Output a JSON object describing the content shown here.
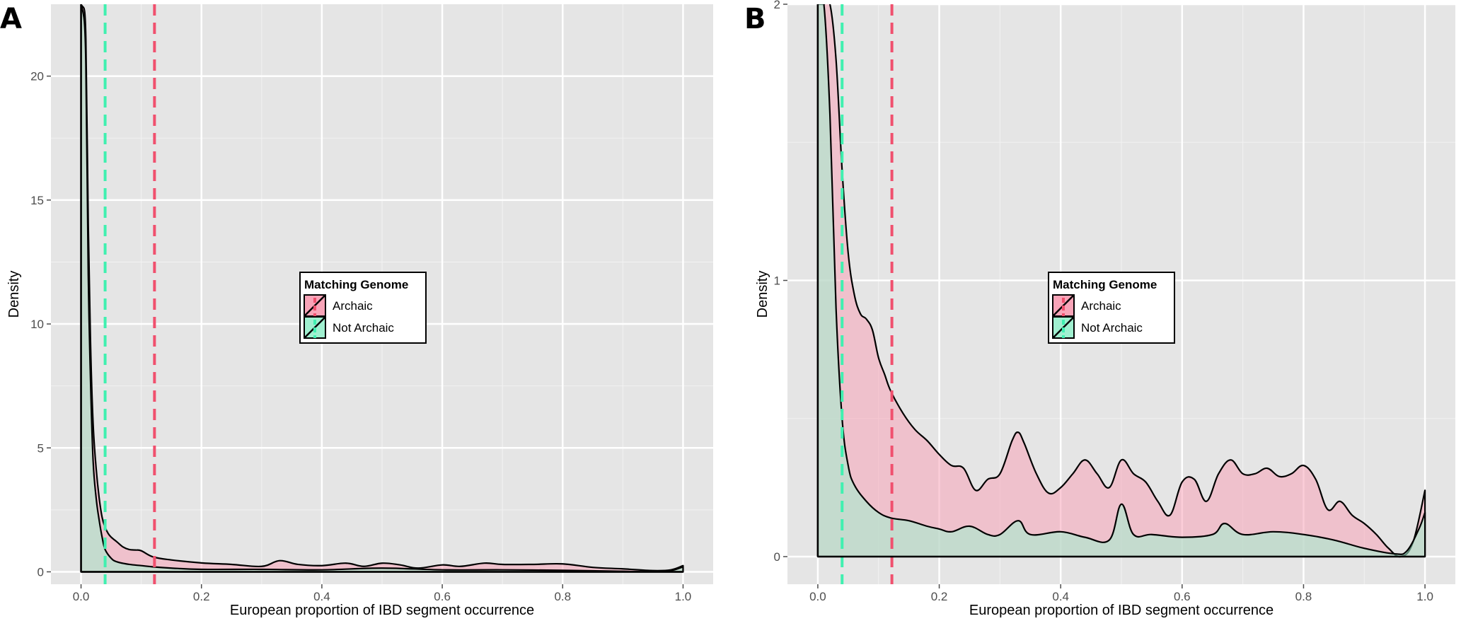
{
  "chart_data": [
    {
      "type": "area",
      "panel_label": "A",
      "xlabel": "European proportion of IBD segment occurrence",
      "ylabel": "Density",
      "xlim": [
        -0.05,
        1.05
      ],
      "ylim": [
        -0.5,
        22.9
      ],
      "x_ticks": [
        0,
        0.2,
        0.4,
        0.6,
        0.8,
        1.0
      ],
      "x_tick_labels": [
        "0.0",
        "0.2",
        "0.4",
        "0.6",
        "0.8",
        "1.0"
      ],
      "y_ticks": [
        0,
        5,
        10,
        15,
        20
      ],
      "y_tick_labels": [
        "0",
        "5",
        "10",
        "15",
        "20"
      ],
      "grid": true,
      "legend": {
        "title": "Matching Genome",
        "placement": "center",
        "entries": [
          {
            "label": "Archaic",
            "color": "#f8a4b8"
          },
          {
            "label": "Not Archaic",
            "color": "#a0f0d0"
          }
        ]
      },
      "vlines": [
        {
          "x": 0.04,
          "color": "#40f0b0",
          "style": "dashed"
        },
        {
          "x": 0.122,
          "color": "#f0506e",
          "style": "dashed"
        }
      ],
      "series": [
        {
          "name": "Archaic",
          "fill": "#f8a4b8",
          "x": [
            0,
            0.004,
            0.008,
            0.012,
            0.016,
            0.02,
            0.025,
            0.03,
            0.035,
            0.04,
            0.045,
            0.05,
            0.06,
            0.07,
            0.08,
            0.09,
            0.1,
            0.12,
            0.15,
            0.2,
            0.25,
            0.3,
            0.33,
            0.36,
            0.4,
            0.44,
            0.47,
            0.5,
            0.53,
            0.56,
            0.6,
            0.63,
            0.67,
            0.7,
            0.75,
            0.8,
            0.85,
            0.9,
            0.95,
            0.98,
            1.0
          ],
          "y": [
            0,
            22.9,
            21.5,
            14,
            9,
            6,
            4.2,
            3,
            2.2,
            1.8,
            1.55,
            1.4,
            1.2,
            1.0,
            0.9,
            0.88,
            0.85,
            0.6,
            0.48,
            0.36,
            0.3,
            0.22,
            0.45,
            0.3,
            0.25,
            0.35,
            0.22,
            0.35,
            0.28,
            0.15,
            0.28,
            0.22,
            0.35,
            0.3,
            0.3,
            0.32,
            0.18,
            0.12,
            0.05,
            0.08,
            0.25
          ]
        },
        {
          "name": "Not Archaic",
          "fill": "#a0f0d0",
          "x": [
            0,
            0.004,
            0.008,
            0.012,
            0.016,
            0.02,
            0.025,
            0.03,
            0.035,
            0.04,
            0.05,
            0.06,
            0.08,
            0.1,
            0.12,
            0.15,
            0.2,
            0.3,
            0.4,
            0.5,
            0.6,
            0.7,
            0.8,
            0.9,
            0.95,
            0.98,
            1.0
          ],
          "y": [
            0,
            22.9,
            20.5,
            12,
            7.5,
            4.5,
            3,
            2.1,
            1.4,
            0.9,
            0.55,
            0.4,
            0.3,
            0.25,
            0.2,
            0.15,
            0.1,
            0.1,
            0.08,
            0.15,
            0.08,
            0.08,
            0.06,
            0.02,
            0.0,
            0.05,
            0.2
          ]
        }
      ]
    },
    {
      "type": "area",
      "panel_label": "B",
      "xlabel": "European proportion of IBD segment occurrence",
      "ylabel": "Density",
      "xlim": [
        -0.05,
        1.05
      ],
      "ylim": [
        -0.1,
        2.0
      ],
      "x_ticks": [
        0,
        0.2,
        0.4,
        0.6,
        0.8,
        1.0
      ],
      "x_tick_labels": [
        "0.0",
        "0.2",
        "0.4",
        "0.6",
        "0.8",
        "1.0"
      ],
      "y_ticks": [
        0,
        1,
        2
      ],
      "y_tick_labels": [
        "0",
        "1",
        "2"
      ],
      "grid": true,
      "legend": {
        "title": "Matching Genome",
        "placement": "center",
        "entries": [
          {
            "label": "Archaic",
            "color": "#f8a4b8"
          },
          {
            "label": "Not Archaic",
            "color": "#a0f0d0"
          }
        ]
      },
      "vlines": [
        {
          "x": 0.04,
          "color": "#40f0b0",
          "style": "dashed"
        },
        {
          "x": 0.122,
          "color": "#f0506e",
          "style": "dashed"
        }
      ],
      "series": [
        {
          "name": "Archaic",
          "fill": "#f8a4b8",
          "x": [
            0,
            0.002,
            0.01,
            0.02,
            0.03,
            0.04,
            0.05,
            0.06,
            0.07,
            0.08,
            0.09,
            0.1,
            0.11,
            0.12,
            0.14,
            0.16,
            0.18,
            0.2,
            0.22,
            0.24,
            0.26,
            0.28,
            0.3,
            0.32,
            0.33,
            0.34,
            0.36,
            0.38,
            0.4,
            0.42,
            0.44,
            0.46,
            0.48,
            0.5,
            0.52,
            0.54,
            0.56,
            0.58,
            0.6,
            0.62,
            0.64,
            0.66,
            0.68,
            0.7,
            0.72,
            0.74,
            0.76,
            0.78,
            0.8,
            0.82,
            0.84,
            0.86,
            0.88,
            0.9,
            0.92,
            0.94,
            0.96,
            0.98,
            1.0
          ],
          "y": [
            0,
            2.0,
            2.0,
            2.0,
            1.8,
            1.4,
            1.1,
            0.95,
            0.88,
            0.86,
            0.82,
            0.72,
            0.66,
            0.6,
            0.52,
            0.46,
            0.42,
            0.37,
            0.33,
            0.32,
            0.24,
            0.28,
            0.3,
            0.42,
            0.45,
            0.41,
            0.3,
            0.23,
            0.25,
            0.3,
            0.35,
            0.3,
            0.25,
            0.35,
            0.3,
            0.27,
            0.2,
            0.15,
            0.27,
            0.28,
            0.2,
            0.3,
            0.35,
            0.3,
            0.3,
            0.32,
            0.29,
            0.3,
            0.33,
            0.28,
            0.17,
            0.2,
            0.15,
            0.12,
            0.08,
            0.03,
            0.0,
            0.05,
            0.24
          ]
        },
        {
          "name": "Not Archaic",
          "fill": "#a0f0d0",
          "x": [
            0,
            0.002,
            0.01,
            0.02,
            0.03,
            0.04,
            0.05,
            0.06,
            0.08,
            0.1,
            0.12,
            0.15,
            0.18,
            0.2,
            0.22,
            0.25,
            0.28,
            0.3,
            0.33,
            0.35,
            0.4,
            0.44,
            0.48,
            0.5,
            0.52,
            0.55,
            0.6,
            0.65,
            0.67,
            0.7,
            0.75,
            0.8,
            0.85,
            0.9,
            0.95,
            0.97,
            0.99,
            1.0
          ],
          "y": [
            0,
            2.0,
            2.0,
            1.6,
            0.9,
            0.5,
            0.33,
            0.26,
            0.2,
            0.16,
            0.14,
            0.13,
            0.11,
            0.1,
            0.09,
            0.11,
            0.08,
            0.08,
            0.13,
            0.08,
            0.09,
            0.07,
            0.06,
            0.19,
            0.08,
            0.08,
            0.07,
            0.08,
            0.12,
            0.08,
            0.09,
            0.08,
            0.06,
            0.03,
            0.01,
            0.02,
            0.1,
            0.16
          ]
        }
      ]
    }
  ]
}
